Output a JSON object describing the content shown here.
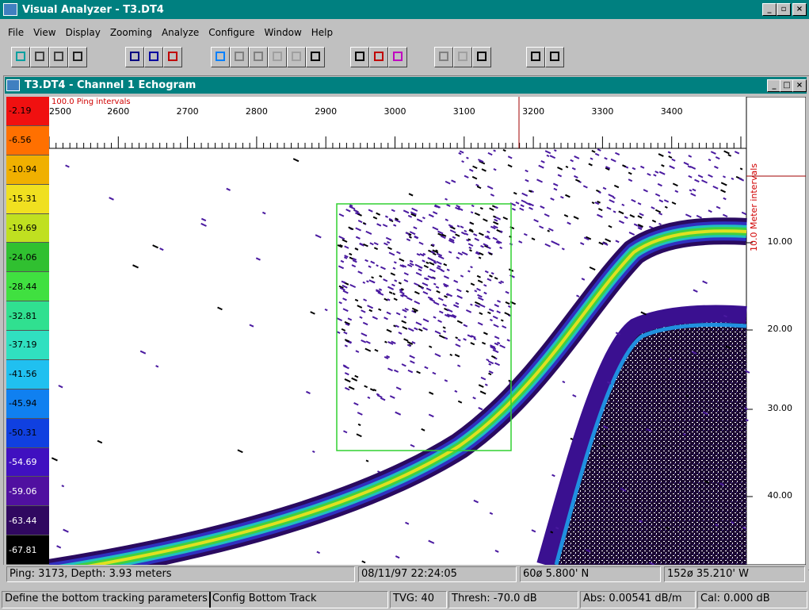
{
  "app": {
    "title": "Visual Analyzer - T3.DT4",
    "menu": [
      "File",
      "View",
      "Display",
      "Zooming",
      "Analyze",
      "Configure",
      "Window",
      "Help"
    ]
  },
  "child": {
    "title": "T3.DT4 - Channel 1  Echogram",
    "scale": [
      "-2.19",
      "-6.56",
      "-10.94",
      "-15.31",
      "-19.69",
      "-24.06",
      "-28.44",
      "-32.81",
      "-37.19",
      "-41.56",
      "-45.94",
      "-50.31",
      "-54.69",
      "-59.06",
      "-63.44",
      "-67.81"
    ],
    "x_axis_label": "100.0 Ping intervals",
    "x_ticks": [
      "2500",
      "2600",
      "2700",
      "2800",
      "2900",
      "3000",
      "3100",
      "3200",
      "3300",
      "3400"
    ],
    "y_axis_label": "10.0 Meter intervals",
    "y_ticks": [
      "10.00",
      "20.00",
      "30.00",
      "40.00"
    ]
  },
  "status": {
    "ping": "Ping: 3173, Depth: 3.93 meters",
    "datetime": "08/11/97 22:24:05",
    "lat": "60ø 5.800' N",
    "lon": "152ø 35.210' W"
  },
  "status2": {
    "hint": "Define the bottom tracking parameters",
    "mode": "Config Bottom Track",
    "tvg": "TVG: 40",
    "thresh": "Thresh: -70.0 dB",
    "abs": "Abs: 0.00541 dB/m",
    "cal": "Cal: 0.000 dB"
  }
}
